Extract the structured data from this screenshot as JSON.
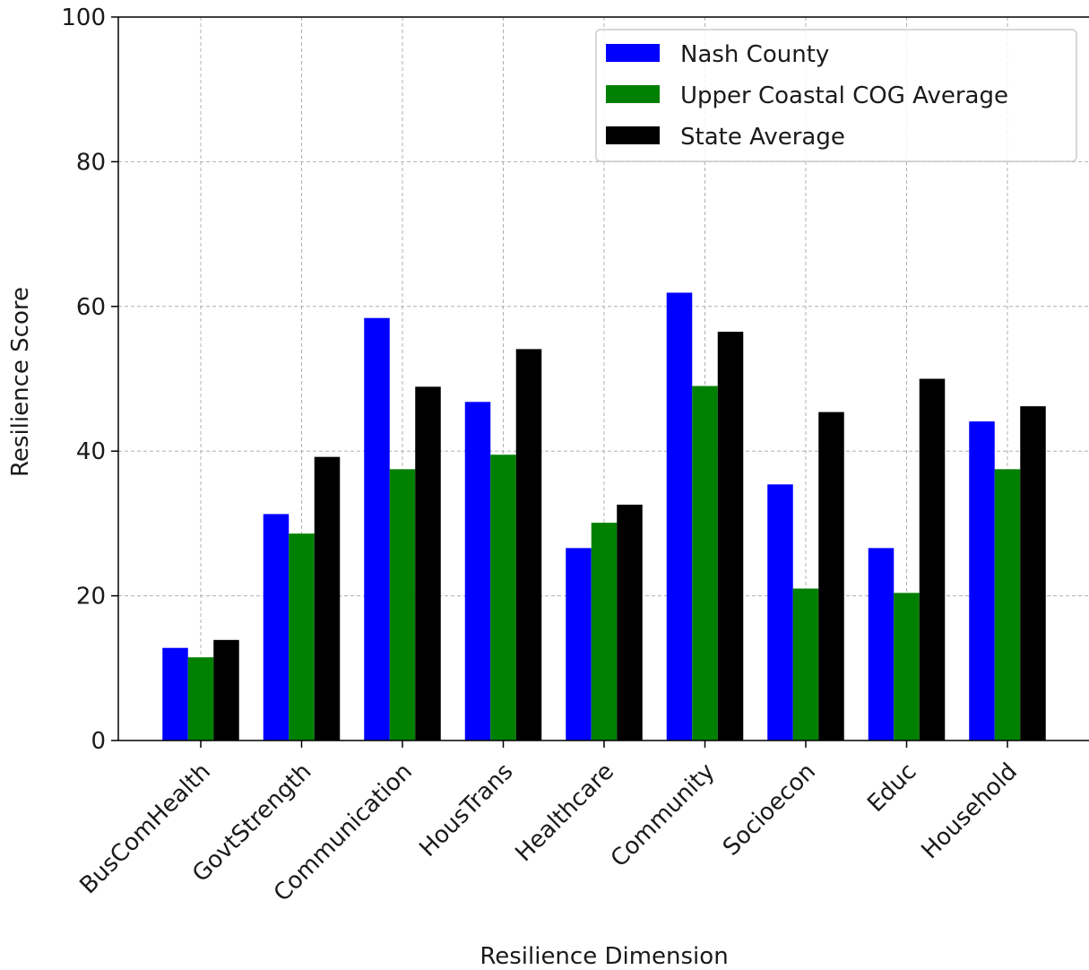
{
  "chart_data": {
    "type": "bar",
    "xlabel": "Resilience Dimension",
    "ylabel": "Resilience Score",
    "ylim": [
      0,
      100
    ],
    "yticks": [
      0,
      20,
      40,
      60,
      80,
      100
    ],
    "grid": true,
    "legend_position": "top-right",
    "categories": [
      "BusComHealth",
      "GovtStrength",
      "Communication",
      "HousTrans",
      "Healthcare",
      "Community",
      "Socioecon",
      "Educ",
      "Household"
    ],
    "series": [
      {
        "name": "Nash County",
        "color": "#0000ff",
        "values": [
          12.8,
          31.3,
          58.4,
          46.8,
          26.6,
          61.9,
          35.4,
          26.6,
          44.1
        ]
      },
      {
        "name": "Upper Coastal COG Average",
        "color": "#008000",
        "values": [
          11.5,
          28.6,
          37.5,
          39.5,
          30.1,
          49.0,
          21.0,
          20.4,
          37.5
        ]
      },
      {
        "name": "State Average",
        "color": "#000000",
        "values": [
          13.9,
          39.2,
          48.9,
          54.1,
          32.6,
          56.5,
          45.4,
          50.0,
          46.2
        ]
      }
    ]
  }
}
